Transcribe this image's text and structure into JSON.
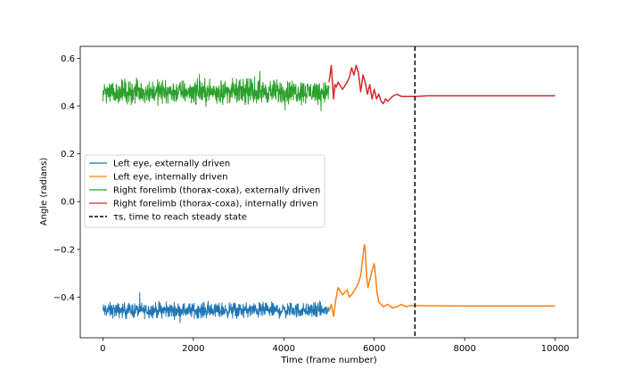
{
  "chart_data": {
    "type": "line",
    "title": "",
    "xlabel": "Time (frame number)",
    "ylabel": "Angle (radians)",
    "xlim": [
      -500,
      10500
    ],
    "ylim": [
      -0.57,
      0.65
    ],
    "xticks": [
      0,
      2000,
      4000,
      6000,
      8000,
      10000
    ],
    "xtick_labels": [
      "0",
      "2000",
      "4000",
      "6000",
      "8000",
      "10000"
    ],
    "yticks": [
      -0.4,
      -0.2,
      0.0,
      0.2,
      0.4,
      0.6
    ],
    "ytick_labels": [
      "−0.4",
      "−0.2",
      "0.0",
      "0.2",
      "0.4",
      "0.6"
    ],
    "grid": false,
    "legend_position": "center-left",
    "steady_state_frame": 6900,
    "series": [
      {
        "name": "Left eye, externally driven",
        "color": "#1f77b4",
        "style": "noise",
        "x_range": [
          0,
          5000
        ],
        "mean": -0.455,
        "amplitude": 0.045
      },
      {
        "name": "Left eye, internally driven",
        "color": "#ff7f0e",
        "style": "line",
        "x": [
          5000,
          5050,
          5100,
          5150,
          5200,
          5300,
          5400,
          5450,
          5500,
          5600,
          5650,
          5700,
          5750,
          5780,
          5800,
          5830,
          5860,
          5900,
          5950,
          6000,
          6030,
          6060,
          6100,
          6150,
          6200,
          6300,
          6400,
          6500,
          6600,
          6700,
          6800,
          6900,
          7200,
          8000,
          9000,
          10000
        ],
        "y": [
          -0.46,
          -0.43,
          -0.48,
          -0.41,
          -0.36,
          -0.39,
          -0.37,
          -0.4,
          -0.39,
          -0.36,
          -0.34,
          -0.31,
          -0.23,
          -0.18,
          -0.2,
          -0.31,
          -0.36,
          -0.33,
          -0.29,
          -0.26,
          -0.31,
          -0.38,
          -0.42,
          -0.43,
          -0.44,
          -0.43,
          -0.445,
          -0.44,
          -0.43,
          -0.44,
          -0.435,
          -0.435,
          -0.436,
          -0.437,
          -0.437,
          -0.437
        ]
      },
      {
        "name": "Right forelimb (thorax-coxa), externally driven",
        "color": "#2ca02c",
        "style": "noise",
        "x_range": [
          0,
          5000
        ],
        "mean": 0.46,
        "amplitude": 0.07
      },
      {
        "name": "Right forelimb (thorax-coxa), internally driven",
        "color": "#d62728",
        "style": "line",
        "x": [
          5000,
          5050,
          5100,
          5130,
          5160,
          5200,
          5300,
          5400,
          5450,
          5500,
          5550,
          5600,
          5650,
          5700,
          5750,
          5800,
          5850,
          5900,
          5950,
          6000,
          6050,
          6100,
          6150,
          6200,
          6250,
          6300,
          6400,
          6500,
          6600,
          6700,
          6800,
          6900,
          7200,
          8000,
          9000,
          10000
        ],
        "y": [
          0.5,
          0.57,
          0.43,
          0.49,
          0.48,
          0.5,
          0.47,
          0.5,
          0.52,
          0.56,
          0.53,
          0.57,
          0.54,
          0.46,
          0.53,
          0.5,
          0.45,
          0.49,
          0.43,
          0.47,
          0.43,
          0.45,
          0.42,
          0.41,
          0.43,
          0.42,
          0.44,
          0.45,
          0.44,
          0.44,
          0.44,
          0.44,
          0.443,
          0.443,
          0.443,
          0.443
        ]
      }
    ],
    "legend": [
      {
        "label": "Left eye, externally driven",
        "color": "#1f77b4",
        "dashed": false
      },
      {
        "label": "Left eye, internally driven",
        "color": "#ff7f0e",
        "dashed": false
      },
      {
        "label": "Right forelimb (thorax-coxa), externally driven",
        "color": "#2ca02c",
        "dashed": false
      },
      {
        "label": "Right forelimb (thorax-coxa), internally driven",
        "color": "#d62728",
        "dashed": false
      },
      {
        "label": "τs, time to reach steady state",
        "color": "#000000",
        "dashed": true
      }
    ]
  }
}
